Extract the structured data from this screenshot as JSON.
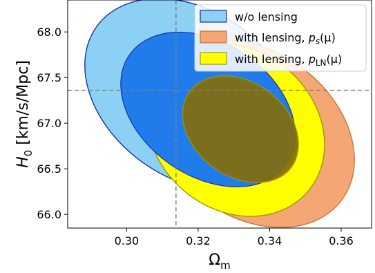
{
  "chart_data": {
    "type": "contour",
    "xlabel": "Ω",
    "xlabel_sub": "m",
    "ylabel": "H",
    "ylabel_sub": "0",
    "ylabel_unit": "[km/s/Mpc]",
    "xlim": [
      0.2835,
      0.3685
    ],
    "ylim": [
      65.85,
      68.35
    ],
    "xticks": [
      {
        "value": 0.3,
        "label": "0.30"
      },
      {
        "value": 0.32,
        "label": "0.32"
      },
      {
        "value": 0.34,
        "label": "0.34"
      },
      {
        "value": 0.36,
        "label": "0.36"
      }
    ],
    "yticks": [
      {
        "value": 66.0,
        "label": "66.0"
      },
      {
        "value": 66.5,
        "label": "66.5"
      },
      {
        "value": 67.0,
        "label": "67.0"
      },
      {
        "value": 67.5,
        "label": "67.5"
      },
      {
        "value": 68.0,
        "label": "68.0"
      }
    ],
    "reference_lines": {
      "x": 0.3138,
      "y": 67.36,
      "style": "dashed",
      "color": "#808080"
    },
    "legend_position": "upper right",
    "series": [
      {
        "name": "w/o lensing",
        "fill_outer": "#8cd0f3",
        "fill_inner": "#1f7cea",
        "edge": "#1a2ea6",
        "outer_extent": {
          "x": [
            0.2855,
            0.3505
          ],
          "y": [
            66.4,
            68.23
          ]
        },
        "inner_extent": {
          "x": [
            0.296,
            0.3495
          ],
          "y": [
            66.42,
            67.88
          ]
        }
      },
      {
        "name_plain": "with lensing, ",
        "name_math": "p",
        "name_math_sub": "s",
        "name_tail": "(μ)",
        "fill_outer": "#f4a674",
        "fill_inner": "#a0643c",
        "edge": "#c8733a",
        "outer_extent": {
          "x": [
            0.304,
            0.3663
          ],
          "y": [
            65.98,
            67.79
          ]
        },
        "inner_extent": {
          "x": [
            0.3142,
            0.3495
          ],
          "y": [
            66.42,
            67.43
          ]
        }
      },
      {
        "name_plain": "with lensing, ",
        "name_math": "p",
        "name_math_sub": "LN",
        "name_tail": "(μ)",
        "fill_outer": "#ffff00",
        "fill_inner": "#7a7206",
        "edge": "#9a9a00",
        "outer_extent": {
          "x": [
            0.304,
            0.357
          ],
          "y": [
            66.05,
            67.8
          ]
        },
        "inner_extent": {
          "x": [
            0.3142,
            0.3495
          ],
          "y": [
            66.42,
            67.45
          ]
        }
      }
    ]
  }
}
